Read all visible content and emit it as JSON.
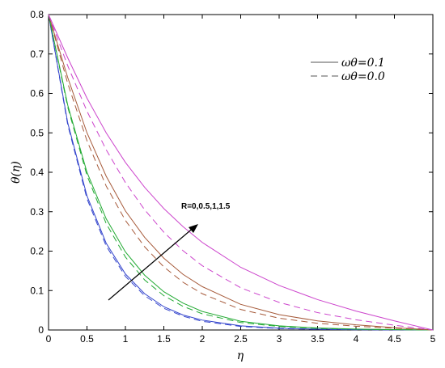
{
  "chart_data": {
    "type": "line",
    "xlabel": "η",
    "ylabel": "θ(η)",
    "xlim": [
      0,
      5
    ],
    "ylim": [
      0,
      0.8
    ],
    "xticks": [
      "0",
      "0.5",
      "1",
      "1.5",
      "2",
      "2.5",
      "3",
      "3.5",
      "4",
      "4.5",
      "5"
    ],
    "yticks": [
      "0",
      "0.1",
      "0.2",
      "0.3",
      "0.4",
      "0.5",
      "0.6",
      "0.7",
      "0.8"
    ],
    "x": [
      0,
      0.25,
      0.5,
      0.75,
      1,
      1.25,
      1.5,
      1.75,
      2,
      2.5,
      3,
      3.5,
      4,
      4.5,
      5
    ],
    "grid": false,
    "legend": {
      "position": "top-right",
      "entries": [
        {
          "text": "ωθ=0.1",
          "style": "solid"
        },
        {
          "text": "ωθ=0.0",
          "style": "dashed"
        }
      ]
    },
    "annotation": {
      "text": "R=0,0.5,1,1.5",
      "direction": "arrow pointing toward increasing R"
    },
    "series": [
      {
        "R": 0,
        "omega": 0.1,
        "style": "solid",
        "color": "#3344cc",
        "values": [
          0.8,
          0.525,
          0.34,
          0.22,
          0.142,
          0.092,
          0.059,
          0.038,
          0.025,
          0.0105,
          0.0045,
          0.002,
          0.001,
          0.0004,
          0
        ]
      },
      {
        "R": 0,
        "omega": 0.0,
        "style": "dashed",
        "color": "#3344cc",
        "values": [
          0.8,
          0.52,
          0.333,
          0.213,
          0.136,
          0.087,
          0.055,
          0.035,
          0.022,
          0.009,
          0.0037,
          0.0015,
          0.0006,
          0.0002,
          0
        ]
      },
      {
        "R": 0.5,
        "omega": 0.1,
        "style": "solid",
        "color": "#22aa33",
        "values": [
          0.8,
          0.57,
          0.4,
          0.282,
          0.198,
          0.139,
          0.097,
          0.068,
          0.047,
          0.022,
          0.0105,
          0.005,
          0.0023,
          0.001,
          0
        ]
      },
      {
        "R": 0.5,
        "omega": 0.0,
        "style": "dashed",
        "color": "#22aa33",
        "values": [
          0.8,
          0.565,
          0.392,
          0.27,
          0.185,
          0.127,
          0.087,
          0.06,
          0.041,
          0.019,
          0.0088,
          0.004,
          0.0018,
          0.0008,
          0
        ]
      },
      {
        "R": 1,
        "omega": 0.1,
        "style": "solid",
        "color": "#a65a3a",
        "values": [
          0.8,
          0.64,
          0.5,
          0.39,
          0.302,
          0.235,
          0.182,
          0.141,
          0.11,
          0.065,
          0.039,
          0.023,
          0.013,
          0.006,
          0
        ]
      },
      {
        "R": 1,
        "omega": 0.0,
        "style": "dashed",
        "color": "#a65a3a",
        "values": [
          0.8,
          0.625,
          0.48,
          0.365,
          0.278,
          0.211,
          0.16,
          0.121,
          0.092,
          0.052,
          0.03,
          0.017,
          0.0095,
          0.0045,
          0
        ]
      },
      {
        "R": 1.5,
        "omega": 0.1,
        "style": "solid",
        "color": "#cc44cc",
        "values": [
          0.8,
          0.69,
          0.588,
          0.5,
          0.425,
          0.362,
          0.308,
          0.262,
          0.222,
          0.159,
          0.113,
          0.077,
          0.048,
          0.023,
          0
        ]
      },
      {
        "R": 1.5,
        "omega": 0.0,
        "style": "dashed",
        "color": "#cc44cc",
        "values": [
          0.8,
          0.67,
          0.555,
          0.457,
          0.374,
          0.305,
          0.248,
          0.201,
          0.163,
          0.107,
          0.07,
          0.044,
          0.026,
          0.012,
          0
        ]
      }
    ]
  }
}
